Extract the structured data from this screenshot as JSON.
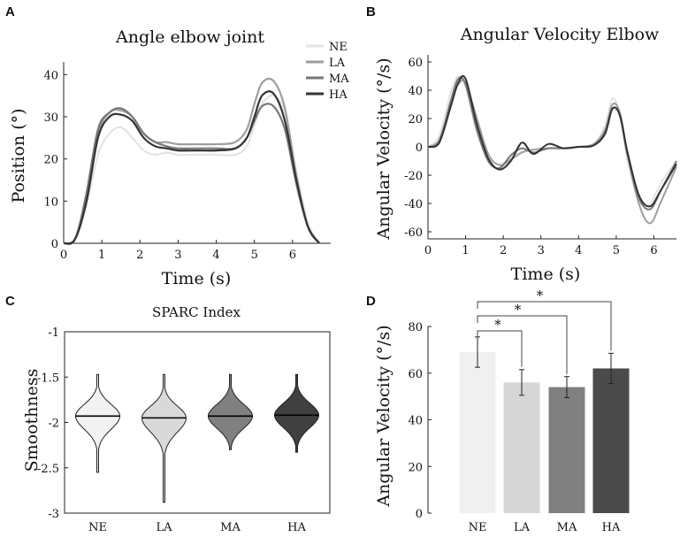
{
  "panels": {
    "A": "A",
    "B": "B",
    "C": "C",
    "D": "D"
  },
  "chart_data": [
    {
      "id": "A",
      "type": "line",
      "title": "Angle elbow joint",
      "xlabel": "Time (s)",
      "ylabel": "Position (°)",
      "xlim": [
        0,
        7
      ],
      "ylim": [
        0,
        43
      ],
      "xticks": [
        "0",
        "1",
        "2",
        "3",
        "4",
        "5",
        "6"
      ],
      "yticks": [
        "0",
        "10",
        "20",
        "30",
        "40"
      ],
      "legend": {
        "position": "top-right",
        "entries": [
          "NE",
          "LA",
          "MA",
          "HA"
        ]
      },
      "series": [
        {
          "name": "NE",
          "color": "#e4e4e4",
          "x": [
            0,
            0.3,
            0.6,
            0.9,
            1.2,
            1.5,
            1.8,
            2.1,
            2.4,
            2.7,
            3.0,
            3.5,
            4.0,
            4.5,
            4.8,
            5.0,
            5.2,
            5.5,
            5.8,
            6.1,
            6.4,
            6.7
          ],
          "y": [
            0,
            1,
            9,
            21,
            26,
            27.5,
            25,
            22,
            21,
            21.5,
            21,
            21,
            21,
            21,
            23,
            28,
            33,
            35,
            31,
            17,
            5,
            0
          ]
        },
        {
          "name": "LA",
          "color": "#9e9e9e",
          "x": [
            0,
            0.3,
            0.6,
            0.9,
            1.2,
            1.5,
            1.8,
            2.1,
            2.4,
            2.7,
            3.0,
            3.5,
            4.0,
            4.5,
            4.8,
            5.0,
            5.2,
            5.5,
            5.8,
            6.1,
            6.4,
            6.7
          ],
          "y": [
            0,
            1,
            11,
            26,
            31,
            31.5,
            30,
            26,
            24,
            24,
            23.5,
            23.5,
            23.5,
            24,
            27,
            33,
            38,
            38.5,
            32,
            16,
            4,
            0
          ]
        },
        {
          "name": "MA",
          "color": "#777777",
          "x": [
            0,
            0.3,
            0.6,
            0.9,
            1.2,
            1.5,
            1.8,
            2.1,
            2.4,
            2.7,
            3.0,
            3.5,
            4.0,
            4.5,
            4.8,
            5.0,
            5.2,
            5.5,
            5.8,
            6.1,
            6.4,
            6.7
          ],
          "y": [
            0,
            1,
            12,
            27,
            31,
            32,
            30,
            26,
            24,
            23,
            22.5,
            22.5,
            22.5,
            22.5,
            25,
            29,
            32.5,
            32.5,
            27,
            14,
            4,
            0
          ]
        },
        {
          "name": "HA",
          "color": "#333333",
          "x": [
            0,
            0.3,
            0.6,
            0.9,
            1.2,
            1.5,
            1.8,
            2.1,
            2.4,
            2.7,
            3.0,
            3.5,
            4.0,
            4.5,
            4.8,
            5.0,
            5.2,
            5.5,
            5.8,
            6.1,
            6.4,
            6.7
          ],
          "y": [
            0,
            1,
            10,
            25,
            30,
            30.5,
            29,
            25,
            23,
            22.5,
            22,
            22,
            22,
            22.5,
            25,
            30,
            35,
            35.5,
            29,
            15,
            4,
            0
          ]
        }
      ]
    },
    {
      "id": "B",
      "type": "line",
      "title": "Angular Velocity Elbow",
      "xlabel": "Time (s)",
      "ylabel": "Angular Velocity (°/s)",
      "xlim": [
        0,
        6.6
      ],
      "ylim": [
        -65,
        65
      ],
      "xticks": [
        "0",
        "1",
        "2",
        "3",
        "4",
        "5",
        "6"
      ],
      "yticks": [
        "-60",
        "-40",
        "-20",
        "0",
        "20",
        "40",
        "60"
      ],
      "series": [
        {
          "name": "NE",
          "color": "#e4e4e4",
          "x": [
            0,
            0.3,
            0.6,
            0.8,
            1.0,
            1.3,
            1.6,
            1.9,
            2.2,
            2.5,
            2.8,
            3.2,
            3.6,
            4.0,
            4.4,
            4.7,
            4.9,
            5.1,
            5.3,
            5.6,
            5.9,
            6.2,
            6.6
          ],
          "y": [
            0,
            8,
            38,
            50,
            42,
            10,
            -8,
            -12,
            -8,
            -3,
            -2,
            -1,
            -1,
            0,
            2,
            15,
            34,
            22,
            -10,
            -38,
            -40,
            -25,
            -10
          ]
        },
        {
          "name": "LA",
          "color": "#9e9e9e",
          "x": [
            0,
            0.3,
            0.6,
            0.8,
            1.0,
            1.3,
            1.6,
            1.9,
            2.2,
            2.5,
            2.8,
            3.2,
            3.6,
            4.0,
            4.4,
            4.7,
            4.9,
            5.1,
            5.3,
            5.6,
            5.9,
            6.2,
            6.6
          ],
          "y": [
            0,
            5,
            30,
            44,
            45,
            20,
            -5,
            -13,
            -9,
            -4,
            -2,
            -1,
            -1,
            0,
            2,
            12,
            30,
            24,
            -5,
            -40,
            -54,
            -38,
            -14
          ]
        },
        {
          "name": "MA",
          "color": "#777777",
          "x": [
            0,
            0.3,
            0.6,
            0.8,
            1.0,
            1.3,
            1.6,
            1.9,
            2.2,
            2.5,
            2.8,
            3.2,
            3.6,
            4.0,
            4.4,
            4.7,
            4.9,
            5.1,
            5.3,
            5.6,
            5.9,
            6.2,
            6.6
          ],
          "y": [
            0,
            4,
            32,
            48,
            44,
            12,
            -10,
            -15,
            -6,
            -1,
            -4,
            -1,
            -1,
            0,
            1,
            10,
            27,
            22,
            -6,
            -36,
            -44,
            -30,
            -10
          ]
        },
        {
          "name": "HA",
          "color": "#333333",
          "x": [
            0,
            0.3,
            0.6,
            0.8,
            1.0,
            1.3,
            1.6,
            1.9,
            2.2,
            2.5,
            2.8,
            3.2,
            3.6,
            4.0,
            4.4,
            4.7,
            4.9,
            5.1,
            5.3,
            5.6,
            5.9,
            6.2,
            6.6
          ],
          "y": [
            0,
            3,
            28,
            45,
            48,
            16,
            -8,
            -16,
            -10,
            3,
            -5,
            2,
            -1,
            0,
            1,
            9,
            27,
            22,
            -4,
            -34,
            -42,
            -30,
            -12
          ]
        }
      ]
    },
    {
      "id": "C",
      "type": "violin",
      "title": "SPARC Index",
      "xlabel": "",
      "ylabel": "Smoothness",
      "ylim": [
        -3,
        -1
      ],
      "yticks": [
        "-1",
        "-1.5",
        "-2",
        "-2.5",
        "-3"
      ],
      "categories": [
        "NE",
        "LA",
        "MA",
        "HA"
      ],
      "colors": [
        "#f2f2f2",
        "#d9d9d9",
        "#808080",
        "#404040"
      ],
      "medians": [
        -1.93,
        -1.95,
        -1.93,
        -1.92
      ],
      "ranges": [
        [
          -2.55,
          -1.47
        ],
        [
          -2.88,
          -1.47
        ],
        [
          -2.3,
          -1.47
        ],
        [
          -2.33,
          -1.47
        ]
      ]
    },
    {
      "id": "D",
      "type": "bar",
      "title": "",
      "xlabel": "",
      "ylabel": "Angular Velocity (°/s)",
      "ylim": [
        0,
        80
      ],
      "yticks": [
        "0",
        "20",
        "40",
        "60",
        "80"
      ],
      "categories": [
        "NE",
        "LA",
        "MA",
        "HA"
      ],
      "values": [
        69,
        56,
        54,
        62
      ],
      "errors": [
        6.5,
        5.5,
        4.5,
        6.5
      ],
      "colors": [
        "#f0f0f0",
        "#d6d6d6",
        "#808080",
        "#4a4a4a"
      ],
      "significance": [
        {
          "from": "NE",
          "to": "LA",
          "label": "*"
        },
        {
          "from": "NE",
          "to": "MA",
          "label": "*"
        },
        {
          "from": "NE",
          "to": "HA",
          "label": "*"
        }
      ]
    }
  ]
}
